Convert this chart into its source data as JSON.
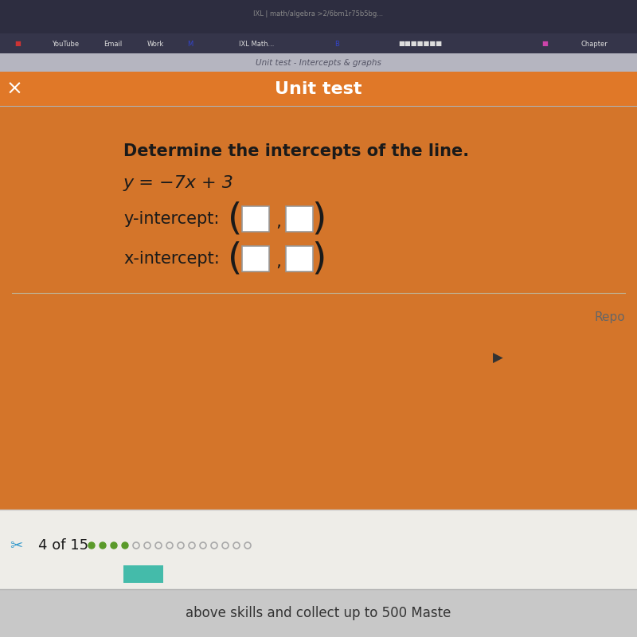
{
  "title_bar_text": "Unit test",
  "title_bar_text_color": "#FFFFFF",
  "question_text": "Determine the intercepts of the line.",
  "equation_text": "y = −7x + 3",
  "y_intercept_label": "y-intercept:",
  "x_intercept_label": "x-intercept:",
  "close_button_text": "×",
  "bottom_bar_text": "above skills and collect up to 500 Maste",
  "progress_text": "4 of 15",
  "fig_bg_color": "#2a2a3a",
  "browser_top_color": "#2d2d3d",
  "bookmarks_bar_color": "#3a3a4a",
  "tab_strip_color": "#c0c0c0",
  "orange_header": "#E07828",
  "orange_bg": "#CC6E1E",
  "content_bg": "#D4752A",
  "white_area_color": "#F0EFED",
  "bottom_strip_color": "#C8C8C8",
  "box_color": "#FFFFFF",
  "box_border_color": "#999999",
  "text_dark": "#1a1a1a",
  "text_medium": "#444444",
  "repo_color": "#666666",
  "progress_dot_filled": "#5a5a5a",
  "progress_dot_empty": "#aaaaaa",
  "green_icon_color": "#44aa44",
  "blue_icon_color": "#3399cc",
  "font_size_title": 16,
  "font_size_question": 15,
  "font_size_equation": 15,
  "font_size_intercept": 14,
  "font_size_bottom": 12
}
